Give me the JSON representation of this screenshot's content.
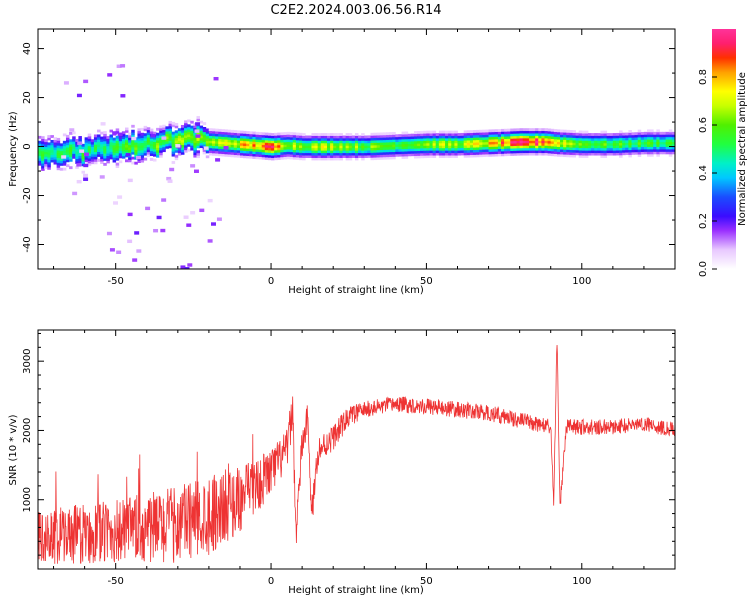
{
  "chart_data": [
    {
      "type": "heatmap",
      "title": "C2E2.2024.003.06.56.R14",
      "xlabel": "Height of straight line (km)",
      "ylabel": "Frequency (Hz)",
      "xlim": [
        -75,
        130
      ],
      "ylim": [
        -50,
        48
      ],
      "x_ticks": [
        "-50",
        "0",
        "50",
        "100"
      ],
      "x_tick_values": [
        -50,
        0,
        50,
        100
      ],
      "y_ticks": [
        "40",
        "20",
        "0",
        "-20",
        "-40"
      ],
      "y_tick_values": [
        40,
        20,
        0,
        -20,
        -40
      ],
      "colorbar": {
        "label": "Normalized spectral amplitude",
        "range": [
          0,
          1
        ],
        "ticks": [
          "0.0",
          "0.2",
          "0.4",
          "0.6",
          "0.8"
        ],
        "tick_values": [
          0.0,
          0.2,
          0.4,
          0.6,
          0.8
        ],
        "colormap": "gist_ncar-like (white, violet, blue, cyan, green, yellow, orange, red, magenta)"
      },
      "ridge": {
        "description": "Doppler frequency ridge vs height",
        "x": [
          -75,
          -65,
          -55,
          -45,
          -35,
          -28,
          -20,
          -10,
          0,
          5,
          10,
          20,
          30,
          40,
          50,
          60,
          70,
          80,
          88,
          92,
          100,
          110,
          120,
          130
        ],
        "freq_hz": [
          -3,
          -2,
          -1,
          0,
          2,
          4,
          2,
          1,
          0,
          0.5,
          0,
          0,
          0,
          0.5,
          1,
          1,
          1.5,
          2,
          2,
          1.5,
          1,
          1,
          1.5,
          1.5
        ],
        "peak_amplitude": [
          0.5,
          0.55,
          0.5,
          0.55,
          0.6,
          0.62,
          0.65,
          0.75,
          0.88,
          0.7,
          0.65,
          0.7,
          0.6,
          0.6,
          0.65,
          0.65,
          0.75,
          0.9,
          0.92,
          0.75,
          0.6,
          0.55,
          0.55,
          0.55
        ]
      }
    },
    {
      "type": "line",
      "xlabel": "Height of straight line (km)",
      "ylabel": "SNR (10 * v/v)",
      "xlim": [
        -75,
        130
      ],
      "ylim": [
        0,
        3450
      ],
      "x_ticks": [
        "-50",
        "0",
        "50",
        "100"
      ],
      "x_tick_values": [
        -50,
        0,
        50,
        100
      ],
      "y_ticks": [
        "3000",
        "2000",
        "1000"
      ],
      "y_tick_values": [
        3000,
        2000,
        1000
      ],
      "color": "#ee3333",
      "trend": {
        "x": [
          -75,
          -60,
          -45,
          -30,
          -20,
          -10,
          0,
          5,
          7,
          8,
          10,
          12,
          13,
          15,
          20,
          25,
          30,
          40,
          50,
          60,
          70,
          80,
          90,
          91,
          92,
          93,
          95,
          100,
          110,
          120,
          130
        ],
        "y": [
          450,
          500,
          550,
          650,
          800,
          1000,
          1400,
          1700,
          2300,
          500,
          1800,
          2200,
          700,
          1700,
          1900,
          2200,
          2300,
          2380,
          2350,
          2300,
          2250,
          2150,
          2050,
          900,
          3400,
          900,
          2050,
          2050,
          2050,
          2100,
          2000
        ]
      },
      "noise_amplitude": {
        "x": [
          -75,
          -40,
          -20,
          0,
          10,
          30,
          130
        ],
        "y": [
          380,
          520,
          600,
          350,
          250,
          120,
          110
        ]
      }
    }
  ]
}
